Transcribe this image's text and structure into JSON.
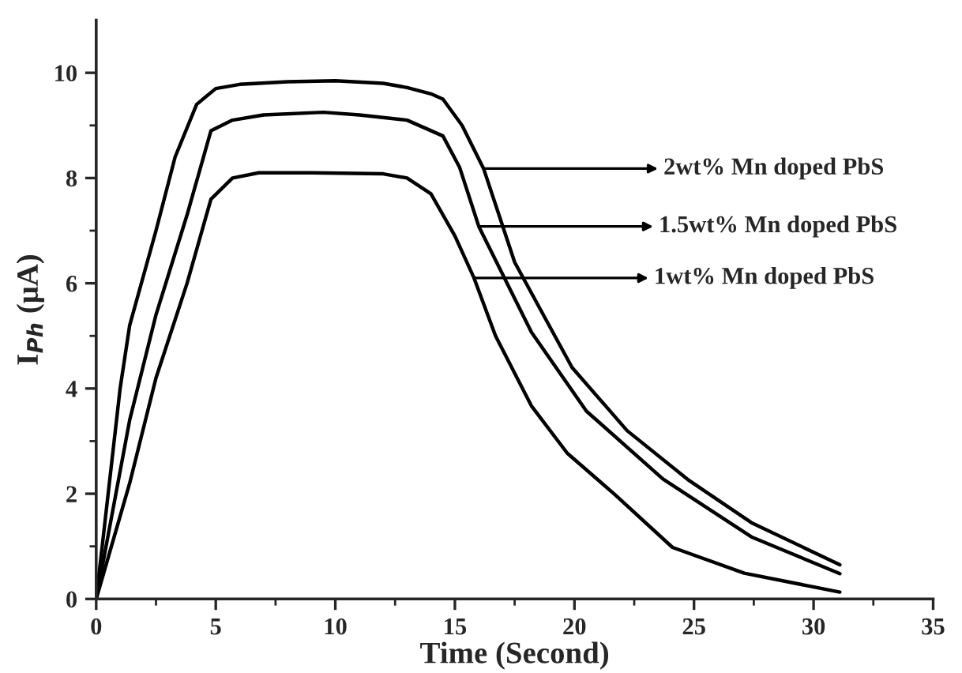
{
  "chart_data": {
    "type": "line",
    "xlabel": "Time (Second)",
    "ylabel": "I$_{Ph}$ (μA)",
    "xlim": [
      0,
      35
    ],
    "ylim": [
      0,
      11
    ],
    "xticks": [
      0,
      5,
      10,
      15,
      20,
      25,
      30,
      35
    ],
    "yticks": [
      0,
      2,
      4,
      6,
      8,
      10
    ],
    "marker": "none",
    "line_style": "solid",
    "series": [
      {
        "color": "#000000",
        "x": [
          0,
          1.0,
          1.4,
          2.5,
          3.3,
          4.2,
          5.0,
          6.0,
          8.0,
          10.0,
          12.0,
          13.0,
          14.0,
          14.5,
          15.3,
          16.2,
          17.5,
          19.9,
          22.2,
          24.8,
          27.4,
          31.1
        ],
        "values": [
          0,
          4.0,
          5.2,
          7.0,
          8.4,
          9.4,
          9.7,
          9.78,
          9.83,
          9.85,
          9.8,
          9.72,
          9.6,
          9.5,
          9.0,
          8.18,
          6.4,
          4.4,
          3.2,
          2.25,
          1.45,
          0.65
        ]
      },
      {
        "color": "#000000",
        "x": [
          0,
          1.4,
          2.5,
          3.8,
          4.8,
          5.7,
          7.0,
          9.5,
          11.0,
          13.0,
          14.5,
          15.2,
          16.0,
          18.2,
          20.5,
          23.7,
          27.4,
          31.1
        ],
        "values": [
          0,
          3.4,
          5.4,
          7.3,
          8.9,
          9.1,
          9.2,
          9.25,
          9.2,
          9.1,
          8.8,
          8.2,
          7.08,
          5.07,
          3.57,
          2.28,
          1.18,
          0.48
        ]
      },
      {
        "color": "#000000",
        "x": [
          0,
          1.4,
          2.5,
          3.8,
          4.8,
          5.7,
          6.8,
          9.0,
          12.0,
          13.0,
          14.0,
          15.0,
          15.8,
          16.7,
          18.2,
          19.7,
          21.7,
          24.1,
          27.1,
          31.1
        ],
        "values": [
          0,
          2.2,
          4.2,
          6.0,
          7.6,
          8.0,
          8.1,
          8.1,
          8.08,
          8.0,
          7.7,
          6.9,
          6.1,
          5.0,
          3.67,
          2.77,
          1.98,
          0.98,
          0.49,
          0.13
        ]
      }
    ],
    "annotations": [
      {
        "text": "2wt% Mn doped PbS",
        "x": 16.2,
        "y": 8.18
      },
      {
        "text": "1.5wt% Mn doped PbS",
        "x": 16.0,
        "y": 7.08
      },
      {
        "text": "1wt% Mn doped PbS",
        "x": 15.8,
        "y": 6.1
      }
    ]
  }
}
